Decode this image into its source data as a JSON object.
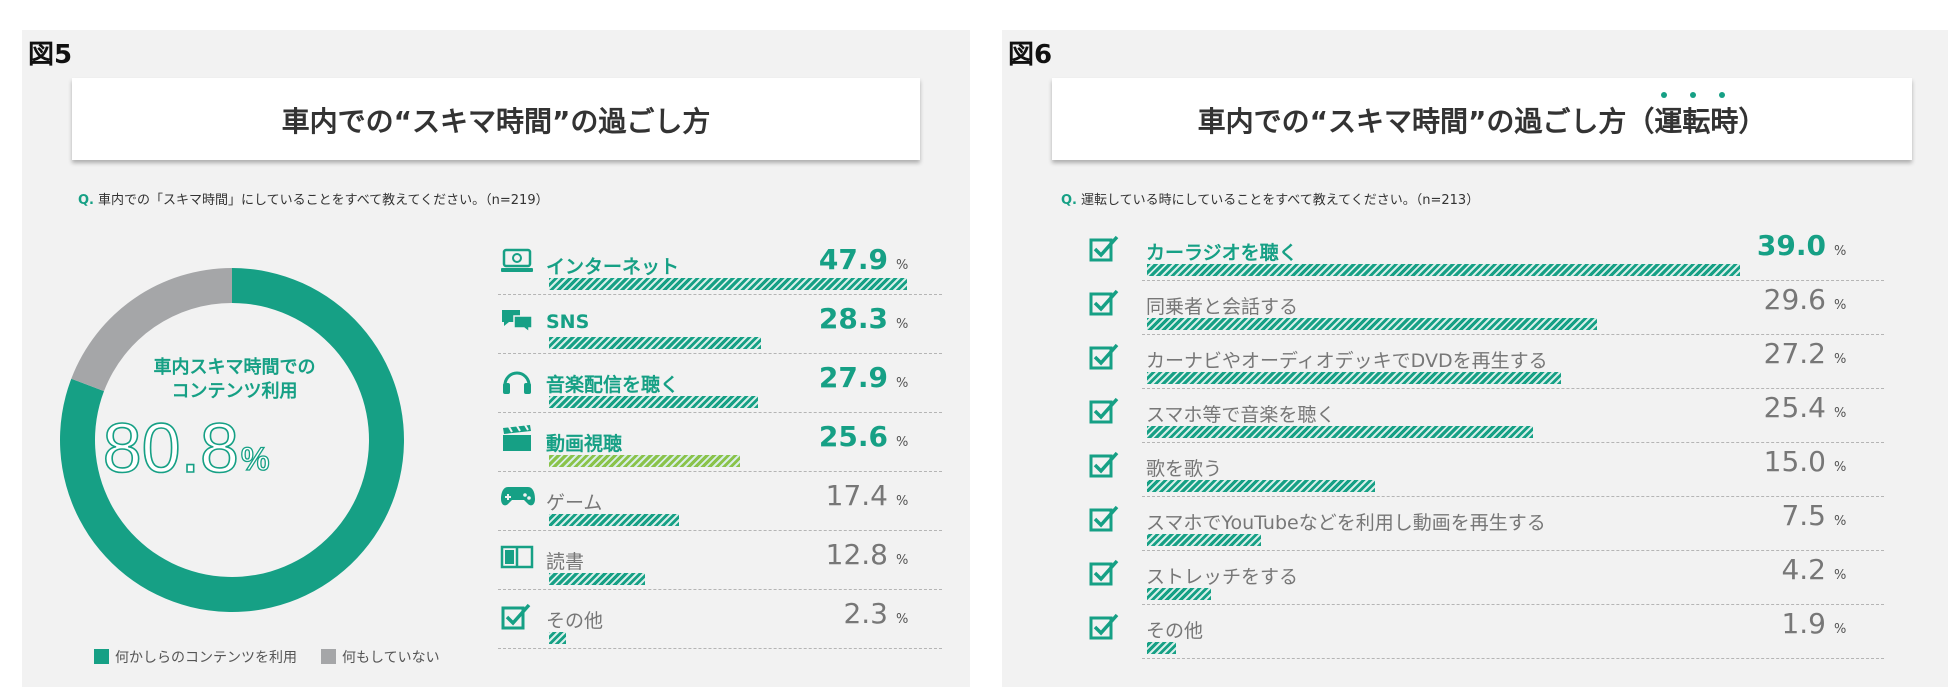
{
  "fig5": {
    "label": "図5",
    "title": "車内での“スキマ時間”の過ごし方",
    "question_prefix": "Q.",
    "question": "車内での「スキマ時間」にしていることをすべて教えてください。（n=219）",
    "donut_title_line1": "車内スキマ時間での",
    "donut_title_line2": "コンテンツ利用",
    "donut_value": "80.8",
    "donut_unit": "%",
    "legend": [
      "何かしらのコンテンツを利用",
      "何もしていない"
    ]
  },
  "fig6": {
    "label": "図6",
    "title": "車内での“スキマ時間”の過ごし方（運転時）",
    "question_prefix": "Q.",
    "question": "運転している時にしていることをすべて教えてください。（n=213）"
  },
  "unit": "%",
  "colors": {
    "teal": "#16a085",
    "gray": "#a5a6a8",
    "green_bar": "#8bc34a",
    "panel_bg": "#f2f2f2"
  },
  "chart_data": [
    {
      "type": "pie",
      "title": "車内スキマ時間でのコンテンツ利用",
      "categories": [
        "何かしらのコンテンツを利用",
        "何もしていない"
      ],
      "values": [
        80.8,
        19.2
      ],
      "colors": [
        "#16a085",
        "#a5a6a8"
      ],
      "legend_position": "bottom"
    },
    {
      "type": "bar",
      "orientation": "horizontal",
      "title": "車内での“スキマ時間”の過ごし方",
      "categories": [
        "インターネット",
        "SNS",
        "音楽配信を聴く",
        "動画視聴",
        "ゲーム",
        "読書",
        "その他"
      ],
      "values": [
        47.9,
        28.3,
        27.9,
        25.6,
        17.4,
        12.8,
        2.3
      ],
      "highlight": [
        true,
        true,
        true,
        true,
        false,
        false,
        false
      ],
      "icons": [
        "laptop-icon",
        "chat-icon",
        "headphones-icon",
        "clapperboard-icon",
        "gamepad-icon",
        "book-icon",
        "checkbox-icon"
      ],
      "bar_colors": [
        "#16a085",
        "#16a085",
        "#16a085",
        "#8bc34a",
        "#16a085",
        "#16a085",
        "#16a085"
      ],
      "xlim": [
        0,
        50
      ],
      "unit": "%"
    },
    {
      "type": "bar",
      "orientation": "horizontal",
      "title": "車内での“スキマ時間”の過ごし方（運転時）",
      "categories": [
        "カーラジオを聴く",
        "同乗者と会話する",
        "カーナビやオーディオデッキでDVDを再生する",
        "スマホ等で音楽を聴く",
        "歌を歌う",
        "スマホでYouTubeなどを利用し動画を再生する",
        "ストレッチをする",
        "その他"
      ],
      "values": [
        39.0,
        29.6,
        27.2,
        25.4,
        15.0,
        7.5,
        4.2,
        1.9
      ],
      "highlight": [
        true,
        false,
        false,
        false,
        false,
        false,
        false,
        false
      ],
      "icons": [
        "checkbox-icon",
        "checkbox-icon",
        "checkbox-icon",
        "checkbox-icon",
        "checkbox-icon",
        "checkbox-icon",
        "checkbox-icon",
        "checkbox-icon"
      ],
      "xlim": [
        0,
        40
      ],
      "unit": "%"
    }
  ]
}
